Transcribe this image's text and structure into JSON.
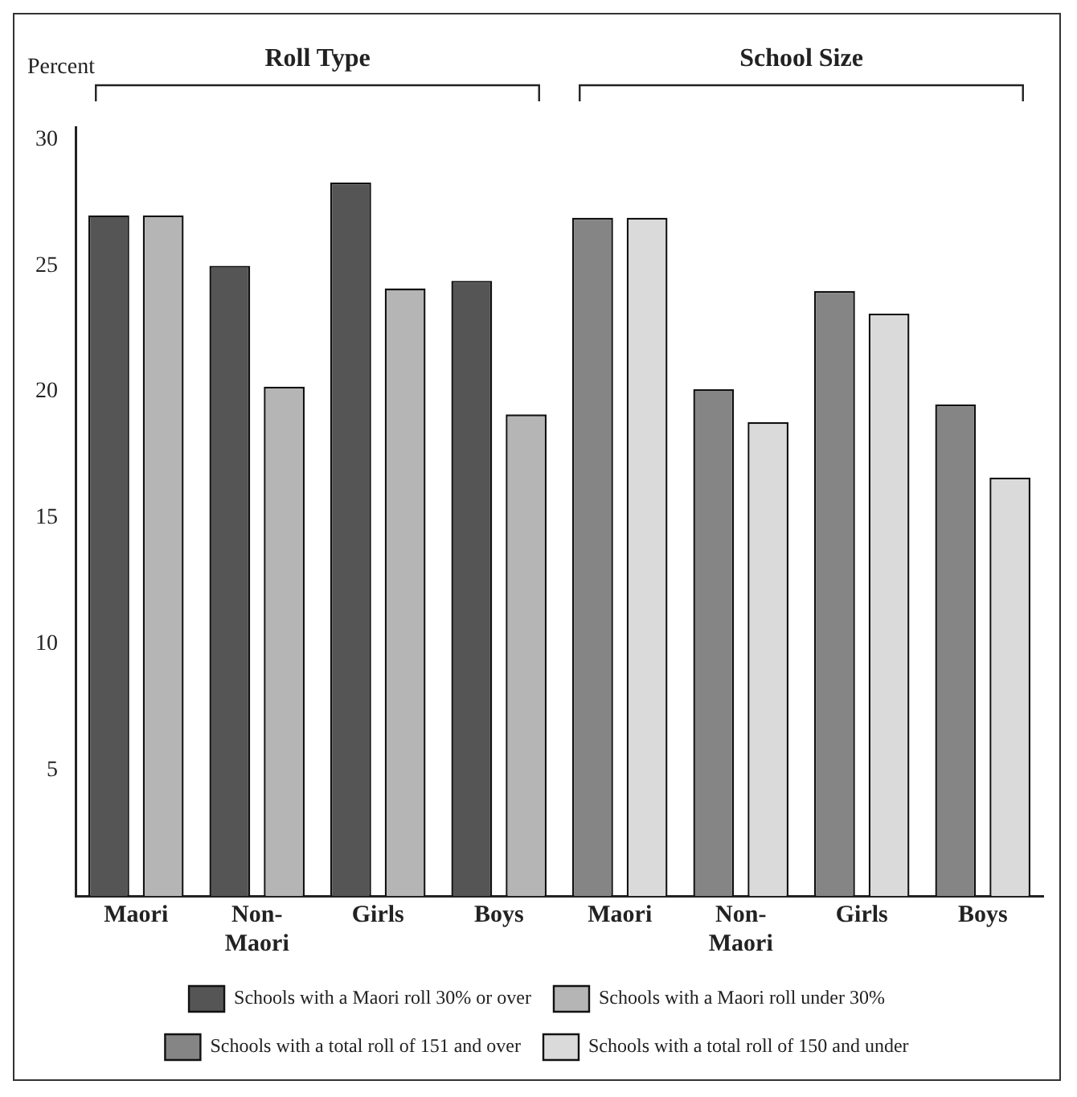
{
  "chart_data": {
    "type": "bar",
    "ylabel": "Percent",
    "categories": [
      "Maori",
      "Non-Maori",
      "Girls",
      "Boys",
      "Maori",
      "Non-Maori",
      "Girls",
      "Boys"
    ],
    "series": [
      {
        "name": "Schools with a Maori roll 30% or over",
        "color": "#555555",
        "values": [
          27.0,
          25.0,
          28.3,
          24.4,
          null,
          null,
          null,
          null
        ]
      },
      {
        "name": "Schools with a Maori roll under 30%",
        "color": "#b5b5b5",
        "values": [
          27.0,
          20.2,
          24.1,
          19.1,
          null,
          null,
          null,
          null
        ]
      },
      {
        "name": "Schools with a total roll of 151 and over",
        "color": "#858585",
        "values": [
          null,
          null,
          null,
          null,
          26.9,
          20.1,
          24.0,
          19.5
        ]
      },
      {
        "name": "Schools with a total roll of 150 and under",
        "color": "#dadada",
        "values": [
          null,
          null,
          null,
          null,
          26.9,
          18.8,
          23.1,
          16.6
        ]
      }
    ],
    "annotations": [
      "Roll Type",
      "School Size"
    ],
    "ylim": [
      0,
      30.5
    ],
    "yticks": [
      5,
      10,
      15,
      20,
      25,
      30
    ],
    "grid": false,
    "legend": "bottom"
  }
}
